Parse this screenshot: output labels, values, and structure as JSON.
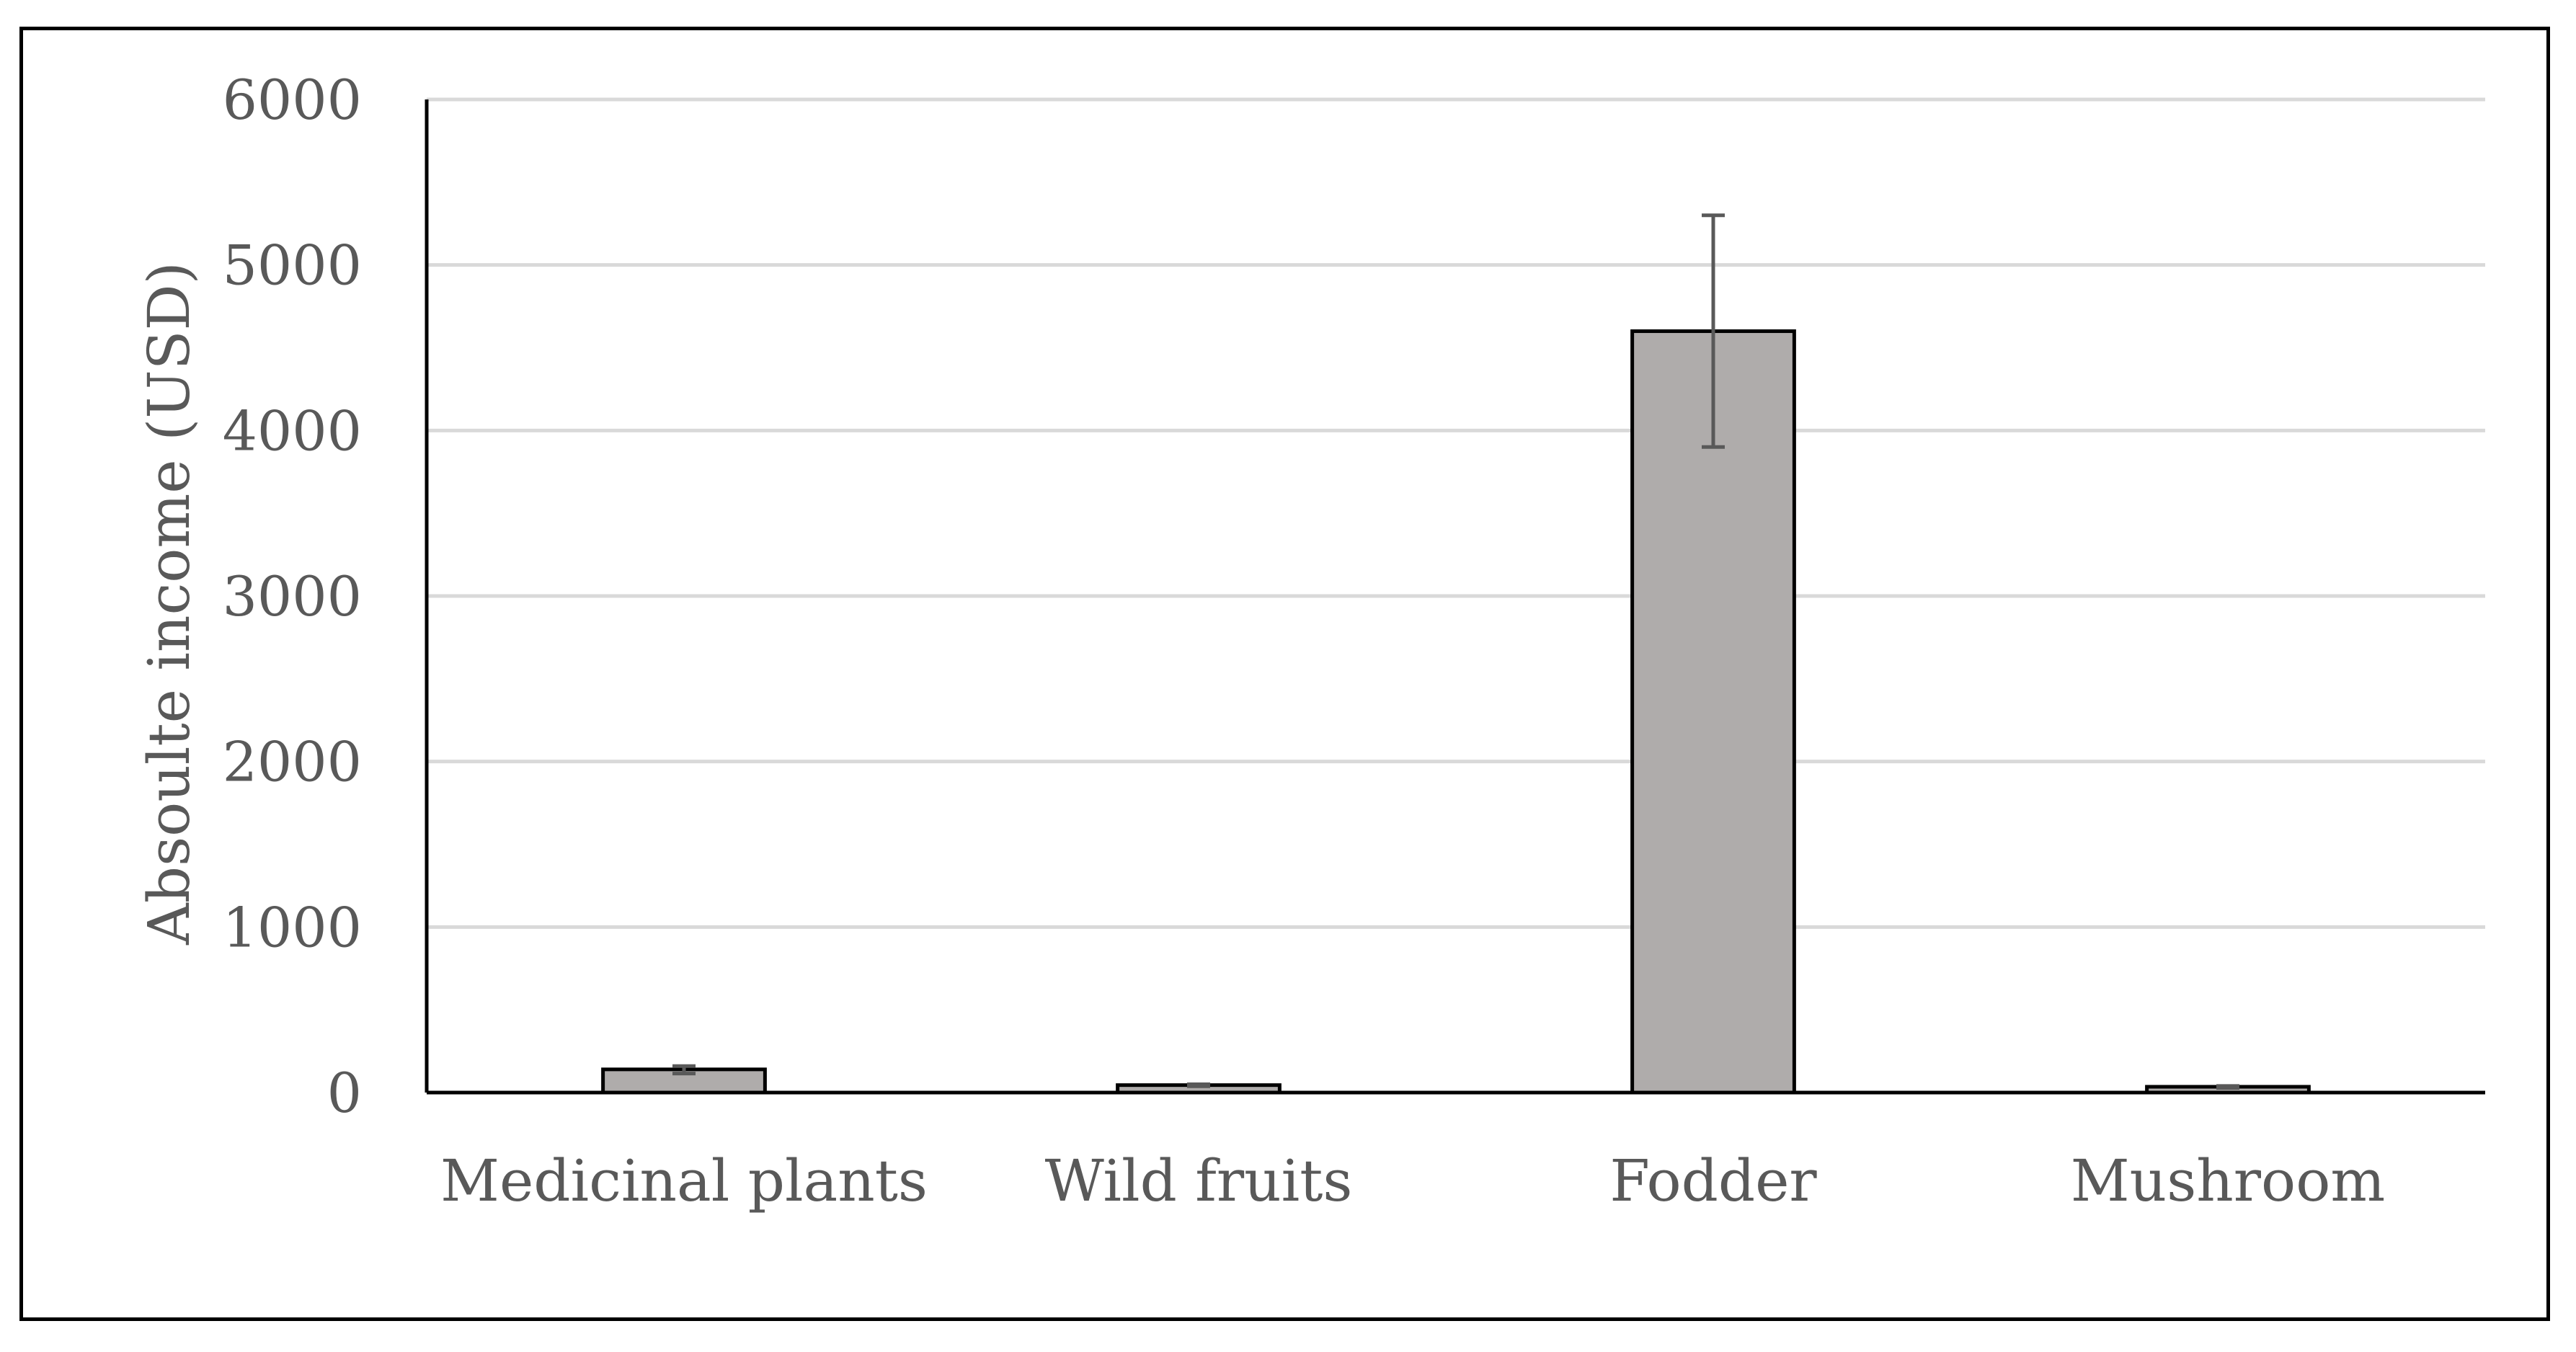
{
  "chart_data": {
    "type": "bar",
    "categories": [
      "Medicinal plants",
      "Wild fruits",
      "Fodder",
      "Mushroom"
    ],
    "values": [
      140,
      45,
      4600,
      35
    ],
    "error_low": [
      115,
      38,
      3900,
      28
    ],
    "error_high": [
      160,
      50,
      5300,
      40
    ],
    "title": "",
    "xlabel": "",
    "ylabel": "Absoulte income (USD)",
    "ylim": [
      0,
      6000
    ],
    "yticks": [
      0,
      1000,
      2000,
      3000,
      4000,
      5000,
      6000
    ],
    "grid": true,
    "bar_color": "#AFACAB",
    "bar_edge_color": "#000000",
    "grid_color": "#D9D9D9",
    "error_bar_color": "#595959"
  }
}
